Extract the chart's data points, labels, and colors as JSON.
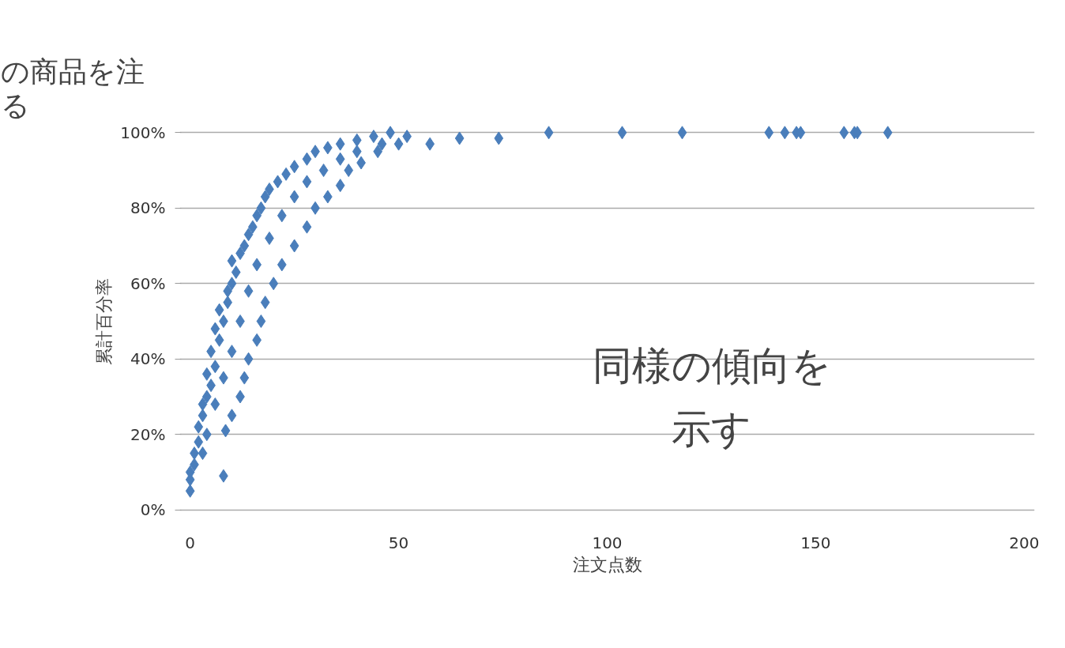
{
  "chart_data": {
    "type": "scatter",
    "xlabel": "注文点数",
    "ylabel": "累計百分率",
    "annotations": [
      "の商品を注",
      "る",
      "同様の傾向を示す"
    ],
    "x": [
      0,
      0,
      0,
      1,
      1,
      2,
      2,
      3,
      3,
      4,
      5,
      4,
      6,
      5,
      7,
      6,
      8,
      7,
      9,
      9,
      10,
      11,
      10,
      12,
      13,
      14,
      15,
      16,
      17,
      18,
      19,
      21,
      23,
      25,
      28,
      30,
      33,
      36,
      40,
      44,
      48,
      8,
      8.5,
      10,
      12,
      13,
      14,
      16,
      17,
      18,
      20,
      22,
      25,
      28,
      30,
      33,
      36,
      38,
      41,
      45,
      50,
      3,
      4,
      6,
      8,
      10,
      12,
      14,
      16,
      19,
      22,
      25,
      28,
      32,
      36,
      40,
      46,
      52,
      57.5,
      64.6,
      74,
      86,
      103.6,
      118,
      138.8,
      142.6,
      145.4,
      146.4,
      156.8,
      159.3,
      160,
      167.3
    ],
    "values": [
      5,
      8,
      10,
      12,
      15,
      18,
      22,
      25,
      28,
      30,
      33,
      36,
      38,
      42,
      45,
      48,
      50,
      53,
      55,
      58,
      60,
      63,
      66,
      68,
      70,
      73,
      75,
      78,
      80,
      83,
      85,
      87,
      89,
      91,
      93,
      95,
      96,
      97,
      98,
      99,
      100,
      9,
      21,
      25,
      30,
      35,
      40,
      45,
      50,
      55,
      60,
      65,
      70,
      75,
      80,
      83,
      86,
      90,
      92,
      95,
      97,
      15,
      20,
      28,
      35,
      42,
      50,
      58,
      65,
      72,
      78,
      83,
      87,
      90,
      93,
      95,
      97,
      99,
      97,
      98.5,
      98.5,
      100,
      100,
      100,
      100,
      100,
      100,
      100,
      100,
      100,
      100,
      100
    ],
    "color": "#4a7ebb",
    "marker": "diamond",
    "xlim": [
      -2.5,
      202.5
    ],
    "xticks": [
      0,
      50,
      100,
      150,
      200
    ],
    "ylim": [
      0,
      100
    ],
    "yticks": [
      {
        "value": 0,
        "label": "0%"
      },
      {
        "value": 20,
        "label": "20%"
      },
      {
        "value": 40,
        "label": "40%"
      },
      {
        "value": 60,
        "label": "60%"
      },
      {
        "value": 80,
        "label": "80%"
      },
      {
        "value": 100,
        "label": "100%"
      }
    ],
    "grid": "y"
  }
}
